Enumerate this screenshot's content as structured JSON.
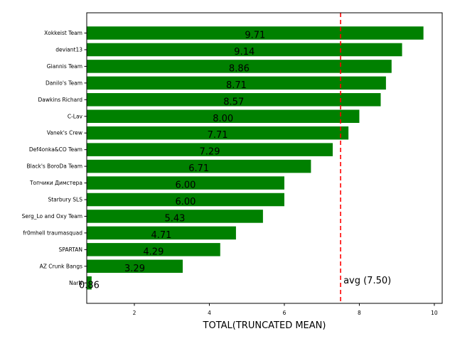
{
  "chart_data": {
    "type": "bar",
    "orientation": "horizontal",
    "title": "",
    "xlabel": "TOTAL(TRUNCATED MEAN)",
    "ylabel": "",
    "xlim": [
      0.73,
      10.21
    ],
    "xticks": [
      2,
      4,
      6,
      8,
      10
    ],
    "grid": false,
    "bar_color": "#008000",
    "categories": [
      "Xokkeist Team",
      "deviant13",
      "Giannis Team",
      "Danilo's Team",
      "Dawkins Richard",
      "C-Lav",
      "Vanek's Crew",
      "Def4onka&CO Team",
      "Black's BoroDa Team",
      "Топчики Димстера",
      "Starbury SLS",
      "Serg_Lo and Oxy Team",
      "fr0mhell traumasquad",
      "SPARTAN",
      "AZ Crunk Bangs",
      "NarN"
    ],
    "values": [
      9.71,
      9.14,
      8.86,
      8.71,
      8.57,
      8.0,
      7.71,
      7.29,
      6.71,
      6.0,
      6.0,
      5.43,
      4.71,
      4.29,
      3.29,
      0.86
    ],
    "value_labels": [
      "9.71",
      "9.14",
      "8.86",
      "8.71",
      "8.57",
      "8.00",
      "7.71",
      "7.29",
      "6.71",
      "6.00",
      "6.00",
      "5.43",
      "4.71",
      "4.29",
      "3.29",
      "0.86"
    ],
    "reference_line": {
      "value": 7.5,
      "label": "avg (7.50)",
      "color": "#ff0000",
      "style": "dashed"
    }
  }
}
